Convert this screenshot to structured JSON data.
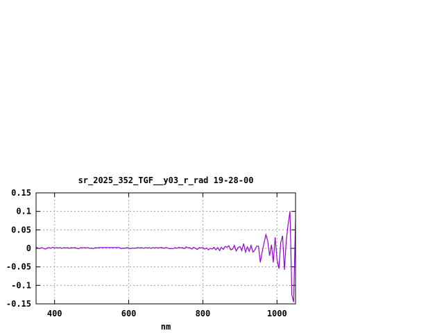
{
  "chart_data": {
    "type": "line",
    "title": "sr_2025_352_TGF__y03_r_rad 19-28-00",
    "xlabel": "nm",
    "ylabel": "",
    "xlim": [
      350,
      1050
    ],
    "ylim": [
      -0.15,
      0.15
    ],
    "xticks": [
      400,
      600,
      800,
      1000
    ],
    "xtick_labels": [
      "400",
      "600",
      "800",
      "1000"
    ],
    "yticks": [
      -0.15,
      -0.1,
      -0.05,
      0,
      0.05,
      0.1,
      0.15
    ],
    "ytick_labels": [
      "-0.15",
      "-0.1",
      "-0.05",
      "0",
      "0.05",
      "0.1",
      "0.15"
    ],
    "grid": true,
    "grid_style": "dotted",
    "series": [
      {
        "color": "#9400d3",
        "x_start": 350,
        "x_step": 5,
        "y": [
          0.003,
          0.001,
          -0.001,
          0.002,
          0,
          -0.002,
          0.001,
          0.002,
          0,
          0.003,
          0.001,
          0.002,
          0.001,
          0.002,
          0,
          0.002,
          0.001,
          0.002,
          0,
          0.002,
          0.001,
          0.002,
          0,
          -0.001,
          0.002,
          0.001,
          0.002,
          0.001,
          0.002,
          0,
          0.001,
          -0.001,
          0.002,
          0.001,
          0.002,
          0.002,
          0.002,
          0.002,
          0.002,
          0.002,
          0.002,
          0.002,
          0.002,
          0.002,
          0.002,
          0.002,
          -0.001,
          0.001,
          0,
          0.002,
          0.001,
          -0.001,
          0.001,
          0,
          0.001,
          0.002,
          0.001,
          0.002,
          0,
          0.002,
          0.001,
          0.002,
          0,
          0.002,
          0.001,
          0.002,
          0.001,
          0.002,
          0.002,
          0,
          0.002,
          0.001,
          -0.001,
          0,
          -0.001,
          0.002,
          0,
          0.003,
          0.001,
          0.002,
          -0.001,
          0.004,
          0.001,
          0.002,
          -0.002,
          0.003,
          0,
          -0.003,
          0.002,
          0.001,
          0.002,
          -0.002,
          0.001,
          -0.004,
          0,
          -0.002,
          0.003,
          -0.004,
          0.002,
          -0.006,
          0.003,
          -0.003,
          0.005,
          0.003,
          0.007,
          -0.004,
          -0.002,
          0.008,
          -0.007,
          0.002,
          0.005,
          -0.006,
          0.013,
          -0.01,
          0.004,
          -0.008,
          0.008,
          -0.01,
          -0.005,
          0.006,
          0.006,
          -0.038,
          -0.01,
          0.015,
          0.037,
          0.02,
          -0.02,
          0.01,
          -0.038,
          0.03,
          -0.03,
          -0.055,
          0.015,
          0.034,
          -0.058,
          0.02,
          0.065,
          0.1,
          -0.126,
          -0.145,
          0.077
        ]
      }
    ]
  }
}
